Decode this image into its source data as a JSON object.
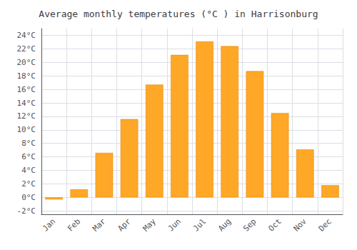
{
  "chart_data": {
    "type": "bar",
    "title": "Average monthly temperatures (°C ) in Harrisonburg",
    "categories": [
      "Jan",
      "Feb",
      "Mar",
      "Apr",
      "May",
      "Jun",
      "Jul",
      "Aug",
      "Sep",
      "Oct",
      "Nov",
      "Dec"
    ],
    "values": [
      -0.3,
      1.2,
      6.6,
      11.6,
      16.7,
      21.1,
      23.1,
      22.4,
      18.7,
      12.5,
      7.1,
      1.8
    ],
    "color": "#FFA726",
    "ylim": [
      -2.5,
      25
    ],
    "yticks": [
      {
        "value": -2,
        "label": "-2°C"
      },
      {
        "value": 0,
        "label": "0°C"
      },
      {
        "value": 2,
        "label": "2°C"
      },
      {
        "value": 4,
        "label": "4°C"
      },
      {
        "value": 6,
        "label": "6°C"
      },
      {
        "value": 8,
        "label": "8°C"
      },
      {
        "value": 10,
        "label": "10°C"
      },
      {
        "value": 12,
        "label": "12°C"
      },
      {
        "value": 14,
        "label": "14°C"
      },
      {
        "value": 16,
        "label": "16°C"
      },
      {
        "value": 18,
        "label": "18°C"
      },
      {
        "value": 20,
        "label": "20°C"
      },
      {
        "value": 22,
        "label": "22°C"
      },
      {
        "value": 24,
        "label": "24°C"
      }
    ],
    "grid": true
  }
}
